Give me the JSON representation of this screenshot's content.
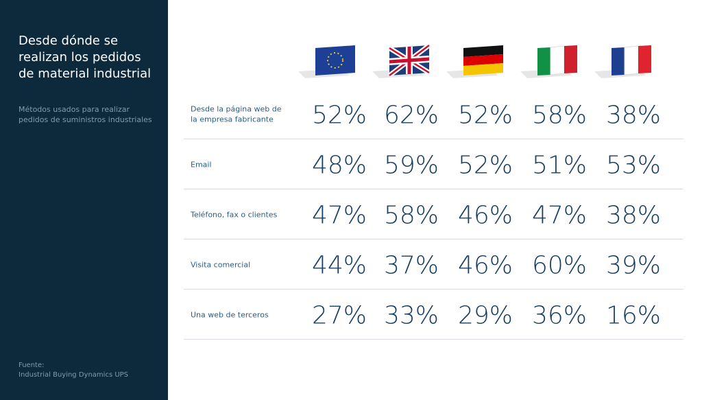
{
  "sidebar": {
    "title": "Desde dónde se realizan los pedidos de material industrial",
    "subtitle": "Métodos usados para realizar pedidos de suministros industriales",
    "source_label": "Fuente:",
    "source": "Industrial Buying Dynamics UPS"
  },
  "table": {
    "rows": [
      {
        "label": "Desde la página web de la empresa fabricante",
        "values": [
          "52%",
          "62%",
          "52%",
          "58%",
          "38%"
        ]
      },
      {
        "label": "Email",
        "values": [
          "48%",
          "59%",
          "52%",
          "51%",
          "53%"
        ]
      },
      {
        "label": "Teléfono, fax o clientes",
        "values": [
          "47%",
          "58%",
          "46%",
          "47%",
          "38%"
        ]
      },
      {
        "label": "Visita comercial",
        "values": [
          "44%",
          "37%",
          "46%",
          "60%",
          "39%"
        ]
      },
      {
        "label": "Una web de terceros",
        "values": [
          "27%",
          "33%",
          "29%",
          "36%",
          "16%"
        ]
      }
    ]
  }
}
